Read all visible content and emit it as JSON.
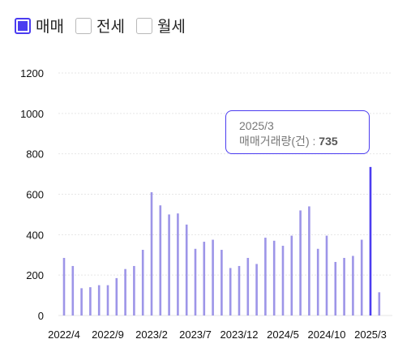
{
  "legend": {
    "items": [
      {
        "label": "매매",
        "checked": true
      },
      {
        "label": "전세",
        "checked": false
      },
      {
        "label": "월세",
        "checked": false
      }
    ]
  },
  "colors": {
    "bar": "#9d95e8",
    "bar_highlight": "#4b3cf0",
    "grid": "#e6e6e6"
  },
  "tooltip": {
    "period": "2025/3",
    "metric_label": "매매거래량(건) : ",
    "value": "735"
  },
  "chart_data": {
    "type": "bar",
    "categories": [
      "2022/4",
      "2022/5",
      "2022/6",
      "2022/7",
      "2022/8",
      "2022/9",
      "2022/10",
      "2022/11",
      "2022/12",
      "2023/1",
      "2023/2",
      "2023/3",
      "2023/4",
      "2023/5",
      "2023/6",
      "2023/7",
      "2023/8",
      "2023/9",
      "2023/10",
      "2023/11",
      "2023/12",
      "2024/1",
      "2024/2",
      "2024/3",
      "2024/4",
      "2024/5",
      "2024/6",
      "2024/7",
      "2024/8",
      "2024/9",
      "2024/10",
      "2024/11",
      "2024/12",
      "2025/1",
      "2025/2",
      "2025/3",
      "2025/4"
    ],
    "values": [
      285,
      245,
      135,
      140,
      150,
      150,
      185,
      230,
      245,
      325,
      610,
      545,
      500,
      505,
      450,
      330,
      365,
      375,
      325,
      235,
      245,
      285,
      255,
      385,
      370,
      345,
      395,
      520,
      540,
      330,
      395,
      265,
      285,
      295,
      375,
      735,
      115
    ],
    "highlight_category": "2025/3",
    "x_tick_labels": [
      "2022/4",
      "2022/9",
      "2023/2",
      "2023/7",
      "2023/12",
      "2024/5",
      "2024/10",
      "2025/3"
    ],
    "y_ticks": [
      0,
      200,
      400,
      600,
      800,
      1000,
      1200
    ],
    "ylim": [
      0,
      1200
    ],
    "grid": true
  }
}
